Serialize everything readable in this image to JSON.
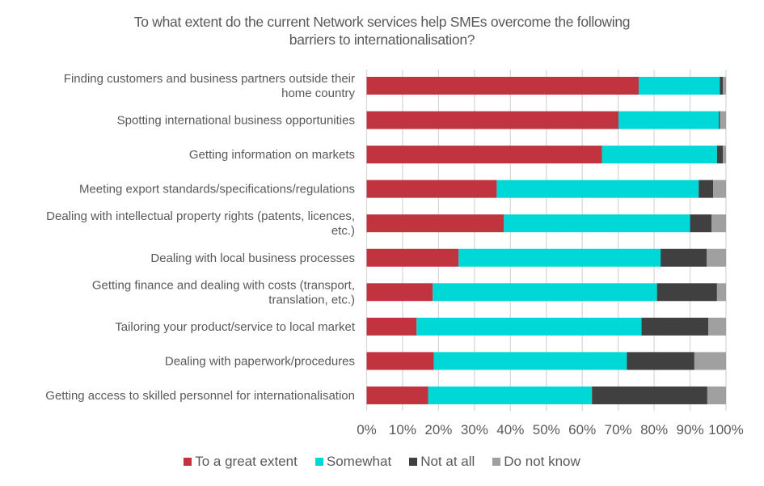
{
  "chart_data": {
    "type": "bar",
    "orientation": "horizontal",
    "stacked": true,
    "title": "To what extent do the current Network services help SMEs overcome the following barriers to internationalisation?",
    "title_lines": [
      "To what extent do the current Network services help SMEs overcome the following",
      "barriers to internationalisation?"
    ],
    "xlabel": "",
    "ylabel": "",
    "xlim": [
      0,
      100
    ],
    "x_ticks": [
      "0%",
      "10%",
      "20%",
      "30%",
      "40%",
      "50%",
      "60%",
      "70%",
      "80%",
      "90%",
      "100%"
    ],
    "grid": "vertical",
    "legend_position": "bottom",
    "categories": [
      [
        "Finding customers and business partners outside their",
        "home country"
      ],
      [
        "Spotting international business opportunities"
      ],
      [
        "Getting information on markets"
      ],
      [
        "Meeting export standards/specifications/regulations"
      ],
      [
        "Dealing with intellectual property rights (patents, licences,",
        "etc.)"
      ],
      [
        "Dealing with local business processes"
      ],
      [
        "Getting finance and dealing with costs (transport,",
        "translation, etc.)"
      ],
      [
        "Tailoring your product/service to local market"
      ],
      [
        "Dealing with paperwork/procedures"
      ],
      [
        "Getting access to skilled personnel for internationalisation"
      ]
    ],
    "series": [
      {
        "name": "To a great extent",
        "color": "#C1343F",
        "values": [
          75.7,
          70.1,
          65.5,
          36.2,
          38.2,
          25.6,
          18.4,
          13.9,
          18.7,
          17.1
        ]
      },
      {
        "name": "Somewhat",
        "color": "#00D8D8",
        "values": [
          22.6,
          27.9,
          32.0,
          56.2,
          51.8,
          56.2,
          62.4,
          62.6,
          53.7,
          45.6
        ]
      },
      {
        "name": "Not at all",
        "color": "#404040",
        "values": [
          0.8,
          0.3,
          1.6,
          4.0,
          6.0,
          12.8,
          16.7,
          18.6,
          18.8,
          32.1
        ]
      },
      {
        "name": "Do not know",
        "color": "#A0A0A0",
        "values": [
          0.9,
          1.7,
          0.9,
          3.6,
          4.0,
          5.4,
          2.5,
          4.9,
          8.8,
          5.2
        ]
      }
    ]
  }
}
